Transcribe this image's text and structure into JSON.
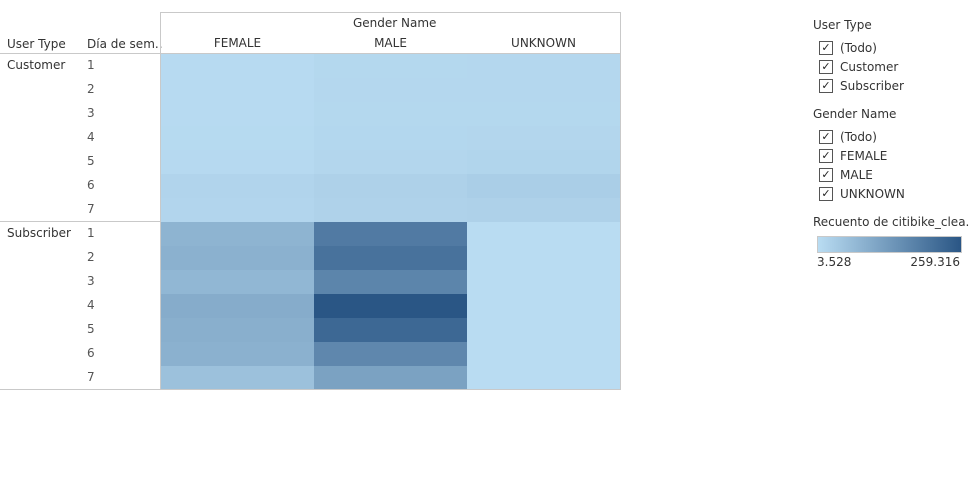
{
  "chart_data": {
    "type": "heatmap",
    "column_group_title": "Gender Name",
    "columns": [
      "FEMALE",
      "MALE",
      "UNKNOWN"
    ],
    "row_header_1": "User Type",
    "row_header_2": "Día de sem..",
    "row_groups": [
      {
        "name": "Customer",
        "rows": [
          "1",
          "2",
          "3",
          "4",
          "5",
          "6",
          "7"
        ]
      },
      {
        "name": "Subscriber",
        "rows": [
          "1",
          "2",
          "3",
          "4",
          "5",
          "6",
          "7"
        ]
      }
    ],
    "values": [
      [
        7000,
        12000,
        13000
      ],
      [
        7000,
        13000,
        13000
      ],
      [
        6500,
        12000,
        12000
      ],
      [
        8000,
        14000,
        15000
      ],
      [
        9000,
        15000,
        17000
      ],
      [
        18000,
        24000,
        30000
      ],
      [
        16000,
        22000,
        24000
      ],
      [
        80000,
        190000,
        3600
      ],
      [
        85000,
        205000,
        3600
      ],
      [
        75000,
        170000,
        3600
      ],
      [
        95000,
        259316,
        3600
      ],
      [
        90000,
        225000,
        3600
      ],
      [
        85000,
        165000,
        3600
      ],
      [
        55000,
        115000,
        3600
      ]
    ],
    "color_min": 3528,
    "color_max": 259316,
    "color_scale": [
      "#b9dcf2",
      "#2a5685"
    ]
  },
  "filters": [
    {
      "title": "User Type",
      "items": [
        "(Todo)",
        "Customer",
        "Subscriber"
      ]
    },
    {
      "title": "Gender Name",
      "items": [
        "(Todo)",
        "FEMALE",
        "MALE",
        "UNKNOWN"
      ]
    }
  ],
  "legend": {
    "title": "Recuento de citibike_clea..",
    "min_label": "3.528",
    "max_label": "259.316"
  },
  "check_glyph": "✓"
}
